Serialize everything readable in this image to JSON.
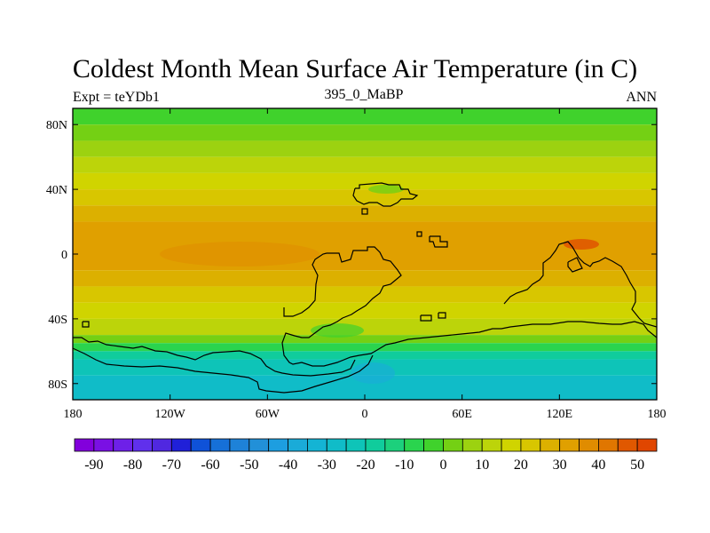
{
  "title": "Coldest Month Mean Surface Air Temperature (in C)",
  "subtitle_left": "Expt = teYDb1",
  "subtitle_center": "395_0_MaBP",
  "subtitle_right": "ANN",
  "chart_data": {
    "type": "heatmap",
    "projection": "cylindrical equidistant",
    "xlim": [
      -180,
      180
    ],
    "ylim": [
      -90,
      90
    ],
    "x_ticks": [
      {
        "value": -180,
        "label": "180"
      },
      {
        "value": -120,
        "label": "120W"
      },
      {
        "value": -60,
        "label": "60W"
      },
      {
        "value": 0,
        "label": "0"
      },
      {
        "value": 60,
        "label": "60E"
      },
      {
        "value": 120,
        "label": "120E"
      },
      {
        "value": 180,
        "label": "180"
      }
    ],
    "y_ticks": [
      {
        "value": 80,
        "label": "80N"
      },
      {
        "value": 40,
        "label": "40N"
      },
      {
        "value": 0,
        "label": "0"
      },
      {
        "value": -40,
        "label": "40S"
      },
      {
        "value": -80,
        "label": "80S"
      }
    ],
    "zonal_band_values": [
      {
        "lat": [
          80,
          90
        ],
        "value": -5
      },
      {
        "lat": [
          70,
          80
        ],
        "value": 0
      },
      {
        "lat": [
          60,
          70
        ],
        "value": 5
      },
      {
        "lat": [
          50,
          60
        ],
        "value": 10
      },
      {
        "lat": [
          40,
          50
        ],
        "value": 15
      },
      {
        "lat": [
          30,
          40
        ],
        "value": 20
      },
      {
        "lat": [
          20,
          30
        ],
        "value": 25
      },
      {
        "lat": [
          -10,
          20
        ],
        "value": 30
      },
      {
        "lat": [
          -20,
          -10
        ],
        "value": 25
      },
      {
        "lat": [
          -30,
          -20
        ],
        "value": 20
      },
      {
        "lat": [
          -40,
          -30
        ],
        "value": 15
      },
      {
        "lat": [
          -50,
          -40
        ],
        "value": 10
      },
      {
        "lat": [
          -55,
          -50
        ],
        "value": 0
      },
      {
        "lat": [
          -60,
          -55
        ],
        "value": -10
      },
      {
        "lat": [
          -65,
          -60
        ],
        "value": -20
      },
      {
        "lat": [
          -75,
          -65
        ],
        "value": -25
      },
      {
        "lat": [
          -90,
          -75
        ],
        "value": -30
      }
    ],
    "colorbar": {
      "labels": [
        "-90",
        "-80",
        "-70",
        "-60",
        "-50",
        "-40",
        "-30",
        "-20",
        "-10",
        "0",
        "10",
        "20",
        "30",
        "40",
        "50"
      ],
      "label_values": [
        -90,
        -80,
        -70,
        -60,
        -50,
        -40,
        -30,
        -20,
        -10,
        0,
        10,
        20,
        30,
        40,
        50
      ],
      "bounds": [
        -95,
        55
      ],
      "step": 5,
      "colors": [
        "#8200dc",
        "#7a10e4",
        "#6e20e8",
        "#6030ec",
        "#5028e0",
        "#2020d8",
        "#0f52d8",
        "#1670d8",
        "#1e82d8",
        "#2290d8",
        "#1d9ee0",
        "#1aabd8",
        "#14b4d4",
        "#10bcc8",
        "#0ec4b8",
        "#10cc9c",
        "#1cd07c",
        "#2ad44e",
        "#40d22c",
        "#74d014",
        "#9cd210",
        "#bcd40a",
        "#d0d400",
        "#d8c600",
        "#dcb000",
        "#e0a000",
        "#e08c00",
        "#e07600",
        "#e05800",
        "#e04600"
      ]
    }
  }
}
